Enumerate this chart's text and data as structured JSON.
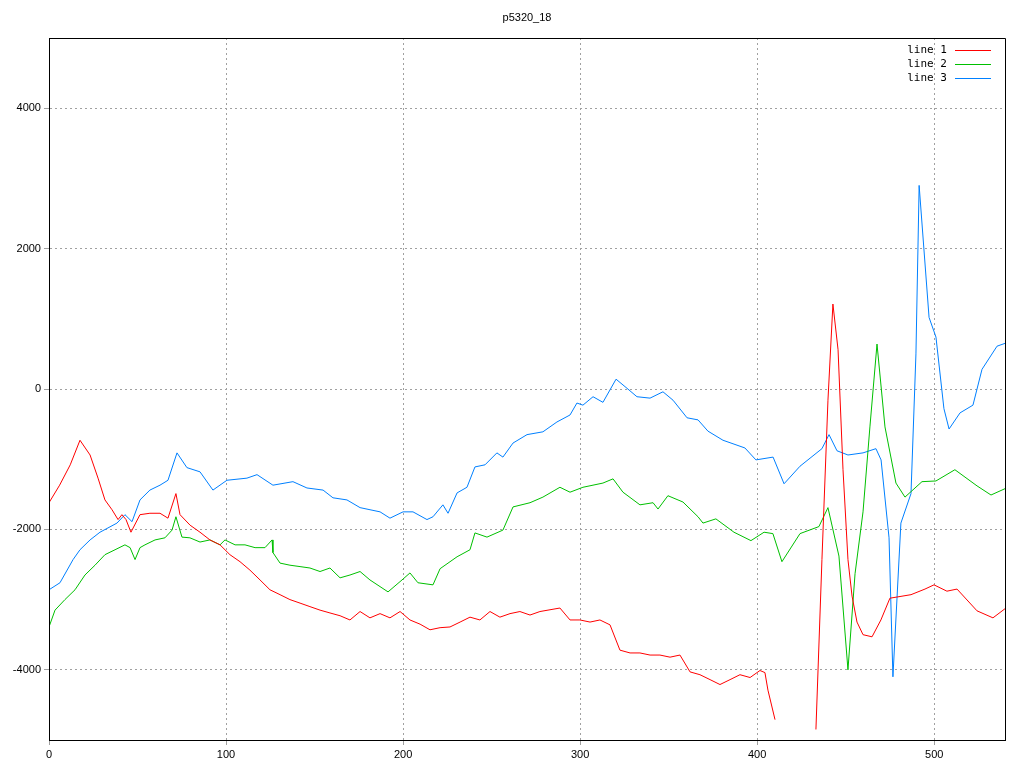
{
  "chart_data": {
    "type": "line",
    "title": "p5320_18",
    "xlim": [
      0,
      540
    ],
    "xticks": [
      0,
      100,
      200,
      300,
      400,
      500
    ],
    "ylim": [
      -5000,
      5000
    ],
    "yticks": [
      -4000,
      -2000,
      0,
      2000,
      4000
    ],
    "grid": true,
    "legend": "top right",
    "marker": "none",
    "line_style": "solid",
    "series": [
      {
        "name": "line 1",
        "color": "#ff0000",
        "x": [
          0,
          6,
          12,
          17.5,
          23.2,
          27.7,
          31.6,
          35.6,
          39,
          41.2,
          43.5,
          46.3,
          51.4,
          57,
          62.7,
          67.2,
          71.7,
          74,
          79.7,
          85.3,
          90.9,
          96.6,
          102.2,
          107.9,
          113.5,
          119.2,
          124.8,
          130.5,
          136.1,
          141.8,
          147.4,
          153.1,
          158.7,
          164.4,
          170,
          175.7,
          181.3,
          187,
          192.6,
          198.3,
          203.9,
          209.6,
          215.2,
          220.9,
          226.5,
          232.2,
          237.8,
          243.4,
          249.1,
          254.7,
          260.4,
          266,
          271.7,
          277.3,
          288.6,
          294.3,
          299.9,
          305.6,
          311.2,
          316.9,
          322.5,
          328.2,
          333.8,
          339.5,
          345.1,
          350.8,
          356.4,
          362.1,
          367.7,
          373.4,
          379,
          384.7,
          390.3,
          396,
          401.6,
          404.4,
          406.1,
          410.1,
          418,
          433.2,
          436.6,
          440,
          442.8,
          445.7,
          448.5,
          451.3,
          453.6,
          456.4,
          459.8,
          464.9,
          469.9,
          475,
          486.9,
          494.8,
          499.9,
          507.2,
          512.9,
          524.2,
          533.2,
          540
        ],
        "values": [
          -1620,
          -1370,
          -1080,
          -730,
          -940,
          -1270,
          -1580,
          -1720,
          -1860,
          -1790,
          -1860,
          -2040,
          -1790,
          -1770,
          -1770,
          -1840,
          -1490,
          -1790,
          -1940,
          -2040,
          -2150,
          -2220,
          -2360,
          -2460,
          -2580,
          -2720,
          -2860,
          -2930,
          -3000,
          -3050,
          -3100,
          -3150,
          -3190,
          -3230,
          -3290,
          -3170,
          -3260,
          -3200,
          -3260,
          -3170,
          -3290,
          -3350,
          -3430,
          -3400,
          -3390,
          -3320,
          -3250,
          -3290,
          -3170,
          -3250,
          -3200,
          -3170,
          -3220,
          -3170,
          -3120,
          -3290,
          -3290,
          -3320,
          -3290,
          -3360,
          -3720,
          -3760,
          -3760,
          -3790,
          -3790,
          -3820,
          -3790,
          -4030,
          -4070,
          -4140,
          -4210,
          -4140,
          -4070,
          -4110,
          -4010,
          -4040,
          -4290,
          -4710,
          null,
          -4850,
          -2430,
          -160,
          1210,
          560,
          -1150,
          -2430,
          -2950,
          -3320,
          -3500,
          -3530,
          -3290,
          -2980,
          -2930,
          -2850,
          -2790,
          -2880,
          -2850,
          -3160,
          -3260,
          -3130
        ]
      },
      {
        "name": "line 2",
        "color": "#00c000",
        "x": [
          0,
          3.4,
          9,
          14.7,
          20.3,
          26,
          31.6,
          37.3,
          42.9,
          45.8,
          48.6,
          51.4,
          54.2,
          59.9,
          65.5,
          69.5,
          71.7,
          75.1,
          79.6,
          85.3,
          90.9,
          96.6,
          99.4,
          105.1,
          110.7,
          116.4,
          122,
          126,
          126.5,
          130.5,
          136.1,
          141.8,
          147.4,
          153.1,
          158.7,
          164.4,
          170,
          175.7,
          181.3,
          191.5,
          199.4,
          203.9,
          208.4,
          216.9,
          220.9,
          230.5,
          237.8,
          240.6,
          247.4,
          256.4,
          262.1,
          271.7,
          279,
          288.6,
          294.3,
          301.6,
          312.9,
          318.6,
          324.2,
          333.8,
          341.2,
          344,
          349.6,
          358.1,
          366.6,
          369.4,
          376.7,
          386.9,
          396.5,
          403.9,
          408.9,
          414,
          424.2,
          434.9,
          440,
          446.2,
          451.3,
          455.3,
          459.8,
          463.7,
          467.7,
          472.2,
          478.4,
          483.5,
          493.1,
          501,
          511.7,
          524.2,
          532.1,
          540
        ],
        "values": [
          -3390,
          -3150,
          -3000,
          -2860,
          -2650,
          -2510,
          -2360,
          -2290,
          -2220,
          -2260,
          -2430,
          -2260,
          -2220,
          -2150,
          -2120,
          -2010,
          -1820,
          -2110,
          -2120,
          -2180,
          -2150,
          -2220,
          -2150,
          -2220,
          -2220,
          -2260,
          -2260,
          -2150,
          -2330,
          -2480,
          -2510,
          -2530,
          -2550,
          -2600,
          -2550,
          -2690,
          -2650,
          -2600,
          -2720,
          -2890,
          -2720,
          -2620,
          -2760,
          -2790,
          -2560,
          -2390,
          -2290,
          -2050,
          -2110,
          -2010,
          -1680,
          -1620,
          -1540,
          -1400,
          -1470,
          -1400,
          -1340,
          -1280,
          -1470,
          -1650,
          -1620,
          -1710,
          -1520,
          -1610,
          -1820,
          -1910,
          -1850,
          -2040,
          -2160,
          -2040,
          -2060,
          -2460,
          -2060,
          -1960,
          -1690,
          -2380,
          -4000,
          -2630,
          -1750,
          -540,
          640,
          -540,
          -1340,
          -1540,
          -1320,
          -1310,
          -1150,
          -1380,
          -1510,
          -1420
        ]
      },
      {
        "name": "line 3",
        "color": "#0080ff",
        "x": [
          0,
          6.2,
          13.6,
          17.5,
          23.2,
          28.8,
          38.4,
          42.9,
          46.9,
          51.4,
          57,
          62.7,
          67.2,
          72.3,
          77.9,
          85.3,
          92.6,
          100.5,
          111.8,
          117.5,
          126.5,
          137.8,
          145.7,
          154.8,
          160.4,
          168.3,
          175.7,
          187,
          192.6,
          200,
          205.6,
          213.5,
          216.9,
          222.5,
          225.4,
          230.5,
          236.1,
          240.6,
          246.3,
          253,
          256.4,
          262.1,
          270,
          279,
          286.9,
          294.3,
          298.2,
          301.6,
          307.3,
          312.9,
          320.3,
          326.5,
          332.1,
          339.5,
          346.8,
          352.5,
          360.4,
          366.6,
          372.2,
          380.7,
          393.1,
          399.3,
          409,
          415.2,
          424.2,
          436.6,
          440.6,
          445.1,
          451.3,
          459.8,
          467.1,
          470,
          474.5,
          476.7,
          481.2,
          486.9,
          489.7,
          491.5,
          497.1,
          501,
          505.5,
          508.4,
          514.6,
          521.9,
          527,
          535.5,
          540
        ],
        "values": [
          -2860,
          -2760,
          -2430,
          -2290,
          -2150,
          -2040,
          -1910,
          -1790,
          -1890,
          -1580,
          -1440,
          -1370,
          -1300,
          -910,
          -1120,
          -1180,
          -1440,
          -1300,
          -1270,
          -1220,
          -1370,
          -1320,
          -1410,
          -1440,
          -1550,
          -1580,
          -1690,
          -1750,
          -1840,
          -1750,
          -1750,
          -1860,
          -1820,
          -1650,
          -1770,
          -1480,
          -1400,
          -1110,
          -1080,
          -910,
          -970,
          -770,
          -650,
          -610,
          -470,
          -370,
          -200,
          -230,
          -110,
          -190,
          140,
          10,
          -110,
          -130,
          -40,
          -160,
          -410,
          -440,
          -600,
          -730,
          -840,
          -1010,
          -970,
          -1350,
          -1100,
          -850,
          -650,
          -880,
          -940,
          -910,
          -850,
          -1010,
          -2120,
          -4100,
          -1910,
          -1490,
          500,
          2900,
          1020,
          740,
          -280,
          -570,
          -340,
          -230,
          280,
          610,
          650
        ]
      }
    ]
  }
}
